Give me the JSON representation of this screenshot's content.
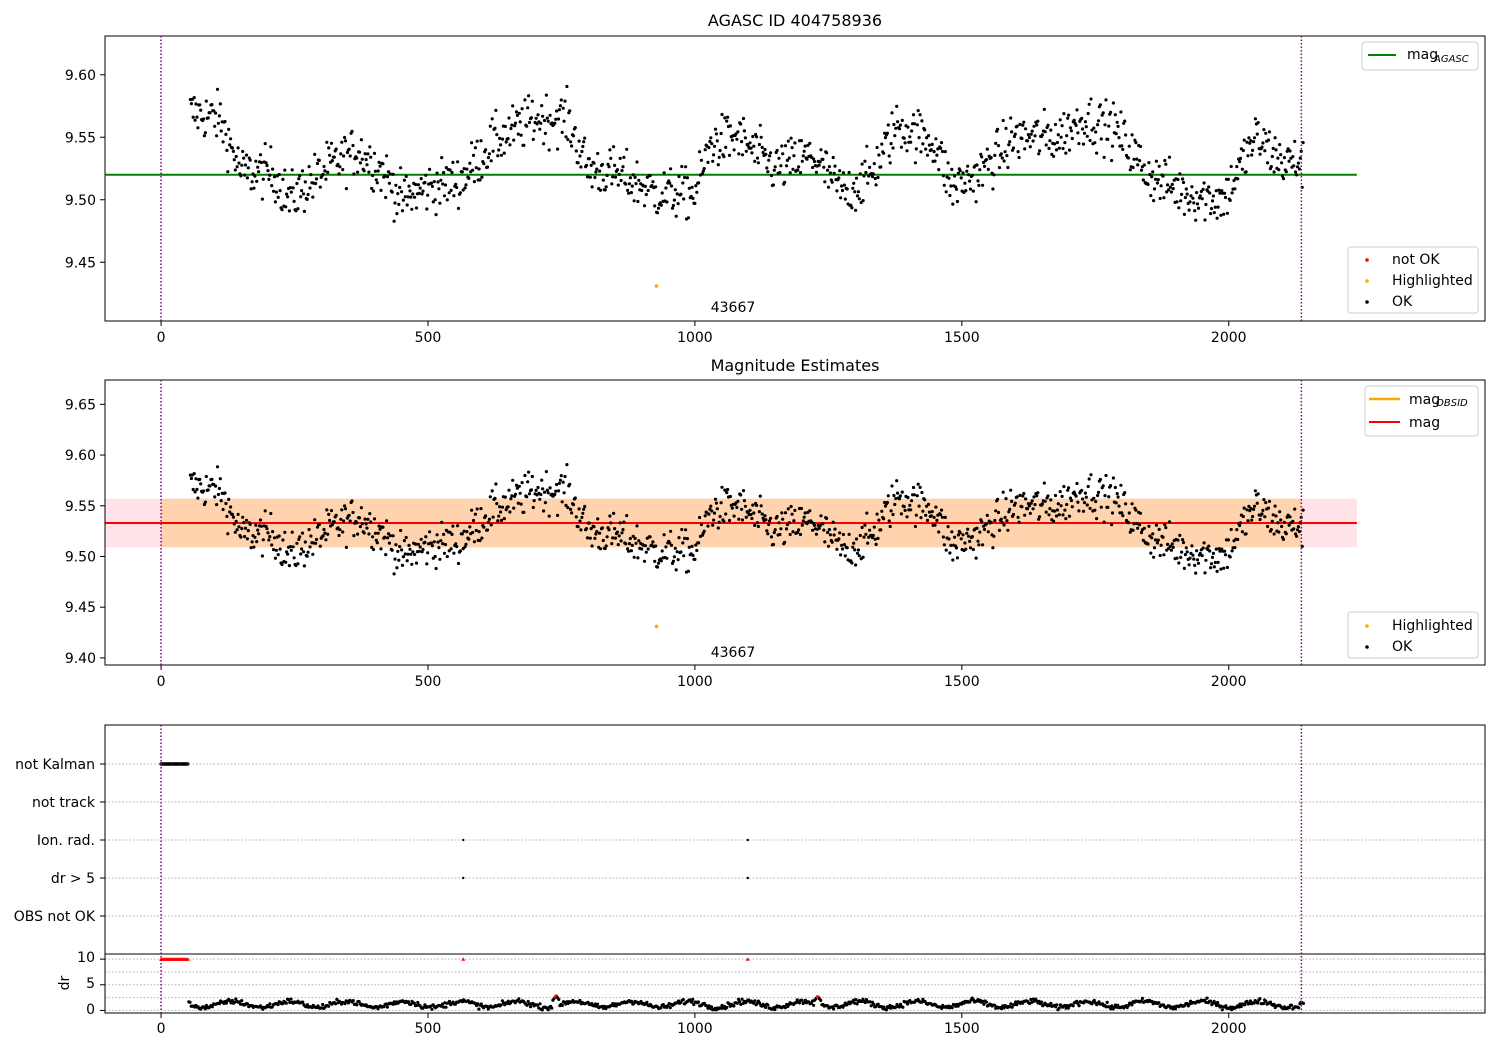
{
  "figure": {
    "title_top": "AGASC ID 404758936",
    "title_mid": "Magnitude Estimates",
    "annotation_obsid": "43667",
    "x_ticks": [
      0,
      500,
      1000,
      1500,
      2000
    ],
    "vlines_x": [
      0,
      2136
    ]
  },
  "legends": {
    "top_line_label": "mag",
    "top_line_sub": "AGASC",
    "top_points": [
      "not OK",
      "Highlighted",
      "OK"
    ],
    "mid_line1_label": "mag",
    "mid_line1_sub": "OBSID",
    "mid_line2_label": "mag",
    "mid_points": [
      "Highlighted",
      "OK"
    ]
  },
  "flags": {
    "labels": [
      "not Kalman",
      "not track",
      "Ion. rad.",
      "dr > 5",
      "OBS not OK"
    ],
    "dr_ylabel": "dr",
    "dr_ticks": [
      "10",
      "5",
      "0"
    ]
  },
  "colors": {
    "ok": "#000000",
    "not_ok": "#ff0000",
    "highlighted": "#ffa500",
    "mag_agasc": "#008000",
    "mag_obsid": "#ffa500",
    "mag": "#ff0000",
    "vline": "#800080"
  },
  "chart_data": [
    {
      "type": "scatter",
      "title": "AGASC ID 404758936",
      "xlim": [
        -105,
        2480
      ],
      "ylim": [
        9.403,
        9.631
      ],
      "y_ticks": [
        9.45,
        9.5,
        9.55,
        9.6
      ],
      "mag_agasc": 9.52,
      "x_range": [
        55,
        2140
      ],
      "series_waypoints": [
        [
          55,
          9.57
        ],
        [
          110,
          9.565
        ],
        [
          150,
          9.522
        ],
        [
          210,
          9.522
        ],
        [
          240,
          9.5
        ],
        [
          310,
          9.525
        ],
        [
          370,
          9.54
        ],
        [
          420,
          9.52
        ],
        [
          450,
          9.5
        ],
        [
          500,
          9.51
        ],
        [
          560,
          9.515
        ],
        [
          620,
          9.545
        ],
        [
          700,
          9.565
        ],
        [
          760,
          9.565
        ],
        [
          800,
          9.525
        ],
        [
          860,
          9.52
        ],
        [
          930,
          9.505
        ],
        [
          1000,
          9.505
        ],
        [
          1030,
          9.545
        ],
        [
          1080,
          9.55
        ],
        [
          1150,
          9.525
        ],
        [
          1220,
          9.535
        ],
        [
          1280,
          9.505
        ],
        [
          1330,
          9.52
        ],
        [
          1380,
          9.56
        ],
        [
          1450,
          9.545
        ],
        [
          1480,
          9.51
        ],
        [
          1530,
          9.52
        ],
        [
          1600,
          9.55
        ],
        [
          1680,
          9.55
        ],
        [
          1730,
          9.565
        ],
        [
          1790,
          9.555
        ],
        [
          1850,
          9.52
        ],
        [
          1920,
          9.505
        ],
        [
          1990,
          9.5
        ],
        [
          2050,
          9.55
        ],
        [
          2100,
          9.53
        ],
        [
          2140,
          9.53
        ]
      ],
      "highlighted_point": [
        928,
        9.431
      ]
    },
    {
      "type": "scatter",
      "title": "Magnitude Estimates",
      "xlim": [
        -105,
        2480
      ],
      "ylim": [
        9.393,
        9.674
      ],
      "y_ticks": [
        9.4,
        9.45,
        9.5,
        9.55,
        9.6,
        9.65
      ],
      "mag": 9.533,
      "band_obsid": [
        9.509,
        9.557
      ],
      "highlighted_point": [
        928,
        9.431
      ]
    },
    {
      "type": "scatter",
      "title": "",
      "categories": [
        "not Kalman",
        "not track",
        "Ion. rad.",
        "dr > 5",
        "OBS not OK"
      ],
      "not_kalman_x_range": [
        0,
        50
      ],
      "ion_rad_x": [
        566,
        1099
      ],
      "dr_gt5_x": [
        566,
        1099
      ]
    },
    {
      "type": "line",
      "ylabel": "dr",
      "ylim": [
        -0.5,
        11
      ],
      "y_ticks": [
        0,
        5,
        10
      ],
      "red_markers_x_range": [
        0,
        50
      ],
      "red_markers_y": 10,
      "red_markers_extra_x": [
        566,
        1099
      ],
      "baseline_dr": 1.2,
      "spikes": [
        [
          740,
          2.9
        ],
        [
          1230,
          2.8
        ]
      ]
    }
  ]
}
